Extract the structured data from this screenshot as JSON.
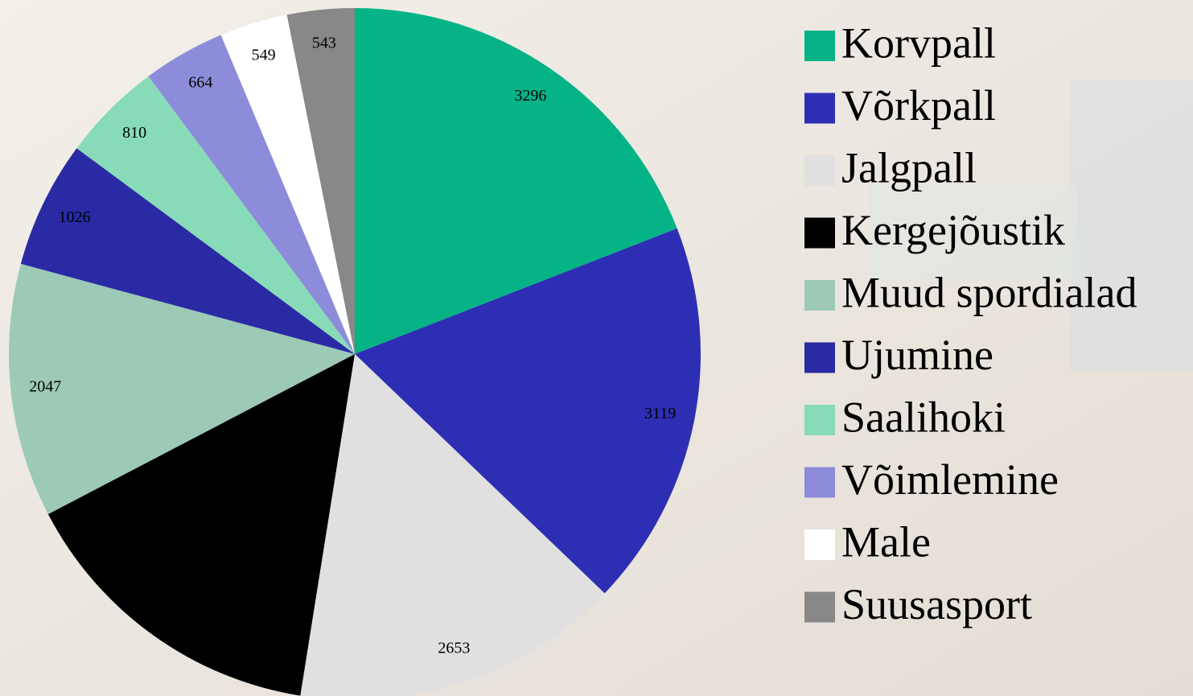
{
  "chart_data": {
    "type": "pie",
    "categories": [
      "Korvpall",
      "Võrkpall",
      "Jalgpall",
      "Kergejõustik",
      "Muud spordialad",
      "Ujumine",
      "Saalihoki",
      "Võimlemine",
      "Male",
      "Suusasport"
    ],
    "values": [
      3296,
      3119,
      2653,
      2560,
      2047,
      1026,
      810,
      664,
      549,
      543
    ],
    "colors": [
      "#05b386",
      "#2e2eb4",
      "#e0e0e0",
      "#000000",
      "#9ccab6",
      "#2a2aa4",
      "#88dbb8",
      "#8c8cda",
      "#ffffff",
      "#888888"
    ],
    "legend": "right"
  }
}
